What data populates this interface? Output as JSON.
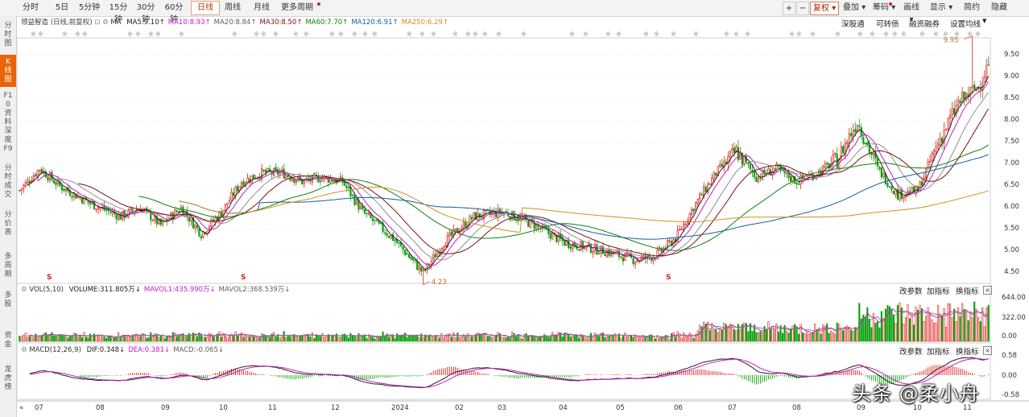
{
  "toolbar": {
    "periods": [
      "分时",
      "5日",
      "5分钟",
      "15分钟",
      "30分钟",
      "60分钟",
      "日线",
      "周线",
      "月线",
      "更多周期"
    ],
    "active_index": 6,
    "right_buttons": [
      "复权",
      "叠加",
      "筹码",
      "画线",
      "显示",
      "简约",
      "隐藏"
    ],
    "plus": "+",
    "minus": "−"
  },
  "sidebar": {
    "tabs": [
      "分时图",
      "K线图",
      "F10资料",
      "深度F9",
      "分时成交",
      "分价表",
      "多周期",
      "多股",
      "资金",
      "龙虎榜"
    ],
    "active_index": 1
  },
  "main_header": {
    "stock": "领益智造",
    "mode": "(日线,前复权)",
    "ma_label": "MA",
    "ma_items": [
      {
        "text": "MA5:9.10",
        "color": "#202020"
      },
      {
        "text": "MA10:8.93",
        "color": "#c020c0"
      },
      {
        "text": "MA20:8.84",
        "color": "#606060"
      },
      {
        "text": "MA30:8.50",
        "color": "#7a1010"
      },
      {
        "text": "MA60:7.70",
        "color": "#108010"
      },
      {
        "text": "MA120:6.91",
        "color": "#1060a0"
      },
      {
        "text": "MA250:6.29",
        "color": "#d09020"
      }
    ],
    "links": [
      "深股通",
      "可转债",
      "融资融券",
      "设置均线"
    ]
  },
  "price_axis": {
    "labels": [
      "9.50",
      "9.00",
      "8.50",
      "8.00",
      "7.50",
      "7.00",
      "6.50",
      "6.00",
      "5.50",
      "5.00",
      "4.50"
    ]
  },
  "annotations": {
    "low": "4.23",
    "high": "9.95",
    "marker": "S"
  },
  "vol_header": {
    "name": "VOL(5,10)",
    "items": [
      {
        "text": "VOLUME:311.805万",
        "color": "#202020"
      },
      {
        "text": "MAVOL1:435.990万",
        "color": "#c020c0"
      },
      {
        "text": "MAVOL2:368.539万",
        "color": "#606060"
      }
    ],
    "buttons": [
      "改参数",
      "加指标",
      "换指标"
    ],
    "axis": [
      "644.00",
      "322.00",
      "0.00"
    ]
  },
  "macd_header": {
    "name": "MACD(12,26,9)",
    "items": [
      {
        "text": "DIF:0.348",
        "color": "#202020"
      },
      {
        "text": "DEA:0.381",
        "color": "#c020c0"
      },
      {
        "text": "MACD:-0.065",
        "color": "#606060"
      }
    ],
    "buttons": [
      "改参数",
      "加指标",
      "换指标"
    ],
    "axis": [
      "0.58",
      "0.00",
      "-0.58"
    ]
  },
  "x_axis": {
    "labels": [
      "07",
      "08",
      "09",
      "10",
      "11",
      "12",
      "2024",
      "02",
      "03",
      "04",
      "05",
      "06",
      "07",
      "08",
      "09",
      "10",
      "11"
    ]
  },
  "watermark": "头条 @柔小舟",
  "chart_data": {
    "type": "candlestick",
    "anchors": [
      [
        0,
        6.4
      ],
      [
        10,
        6.9
      ],
      [
        20,
        6.5
      ],
      [
        35,
        6.1
      ],
      [
        50,
        5.8
      ],
      [
        60,
        6.0
      ],
      [
        70,
        5.6
      ],
      [
        80,
        6.0
      ],
      [
        90,
        5.4
      ],
      [
        100,
        5.9
      ],
      [
        110,
        6.6
      ],
      [
        120,
        6.8
      ],
      [
        130,
        6.8
      ],
      [
        140,
        6.6
      ],
      [
        150,
        6.7
      ],
      [
        160,
        6.6
      ],
      [
        170,
        5.9
      ],
      [
        185,
        5.3
      ],
      [
        200,
        4.5
      ],
      [
        210,
        5.2
      ],
      [
        225,
        5.8
      ],
      [
        240,
        5.9
      ],
      [
        255,
        5.6
      ],
      [
        270,
        5.2
      ],
      [
        290,
        5.0
      ],
      [
        305,
        4.8
      ],
      [
        315,
        4.9
      ],
      [
        325,
        5.3
      ],
      [
        335,
        6.1
      ],
      [
        345,
        6.8
      ],
      [
        355,
        7.3
      ],
      [
        365,
        6.7
      ],
      [
        375,
        6.9
      ],
      [
        385,
        6.6
      ],
      [
        395,
        6.8
      ],
      [
        405,
        7.1
      ],
      [
        415,
        8.0
      ],
      [
        425,
        6.9
      ],
      [
        435,
        6.3
      ],
      [
        445,
        6.4
      ],
      [
        455,
        7.5
      ],
      [
        465,
        8.4
      ],
      [
        475,
        8.8
      ],
      [
        480,
        9.3
      ]
    ],
    "count": 481,
    "low": 4.23,
    "high": 9.95,
    "price_range": [
      4.3,
      9.85
    ],
    "vol_range": [
      0,
      644
    ],
    "macd_range": [
      -0.58,
      0.58
    ]
  }
}
